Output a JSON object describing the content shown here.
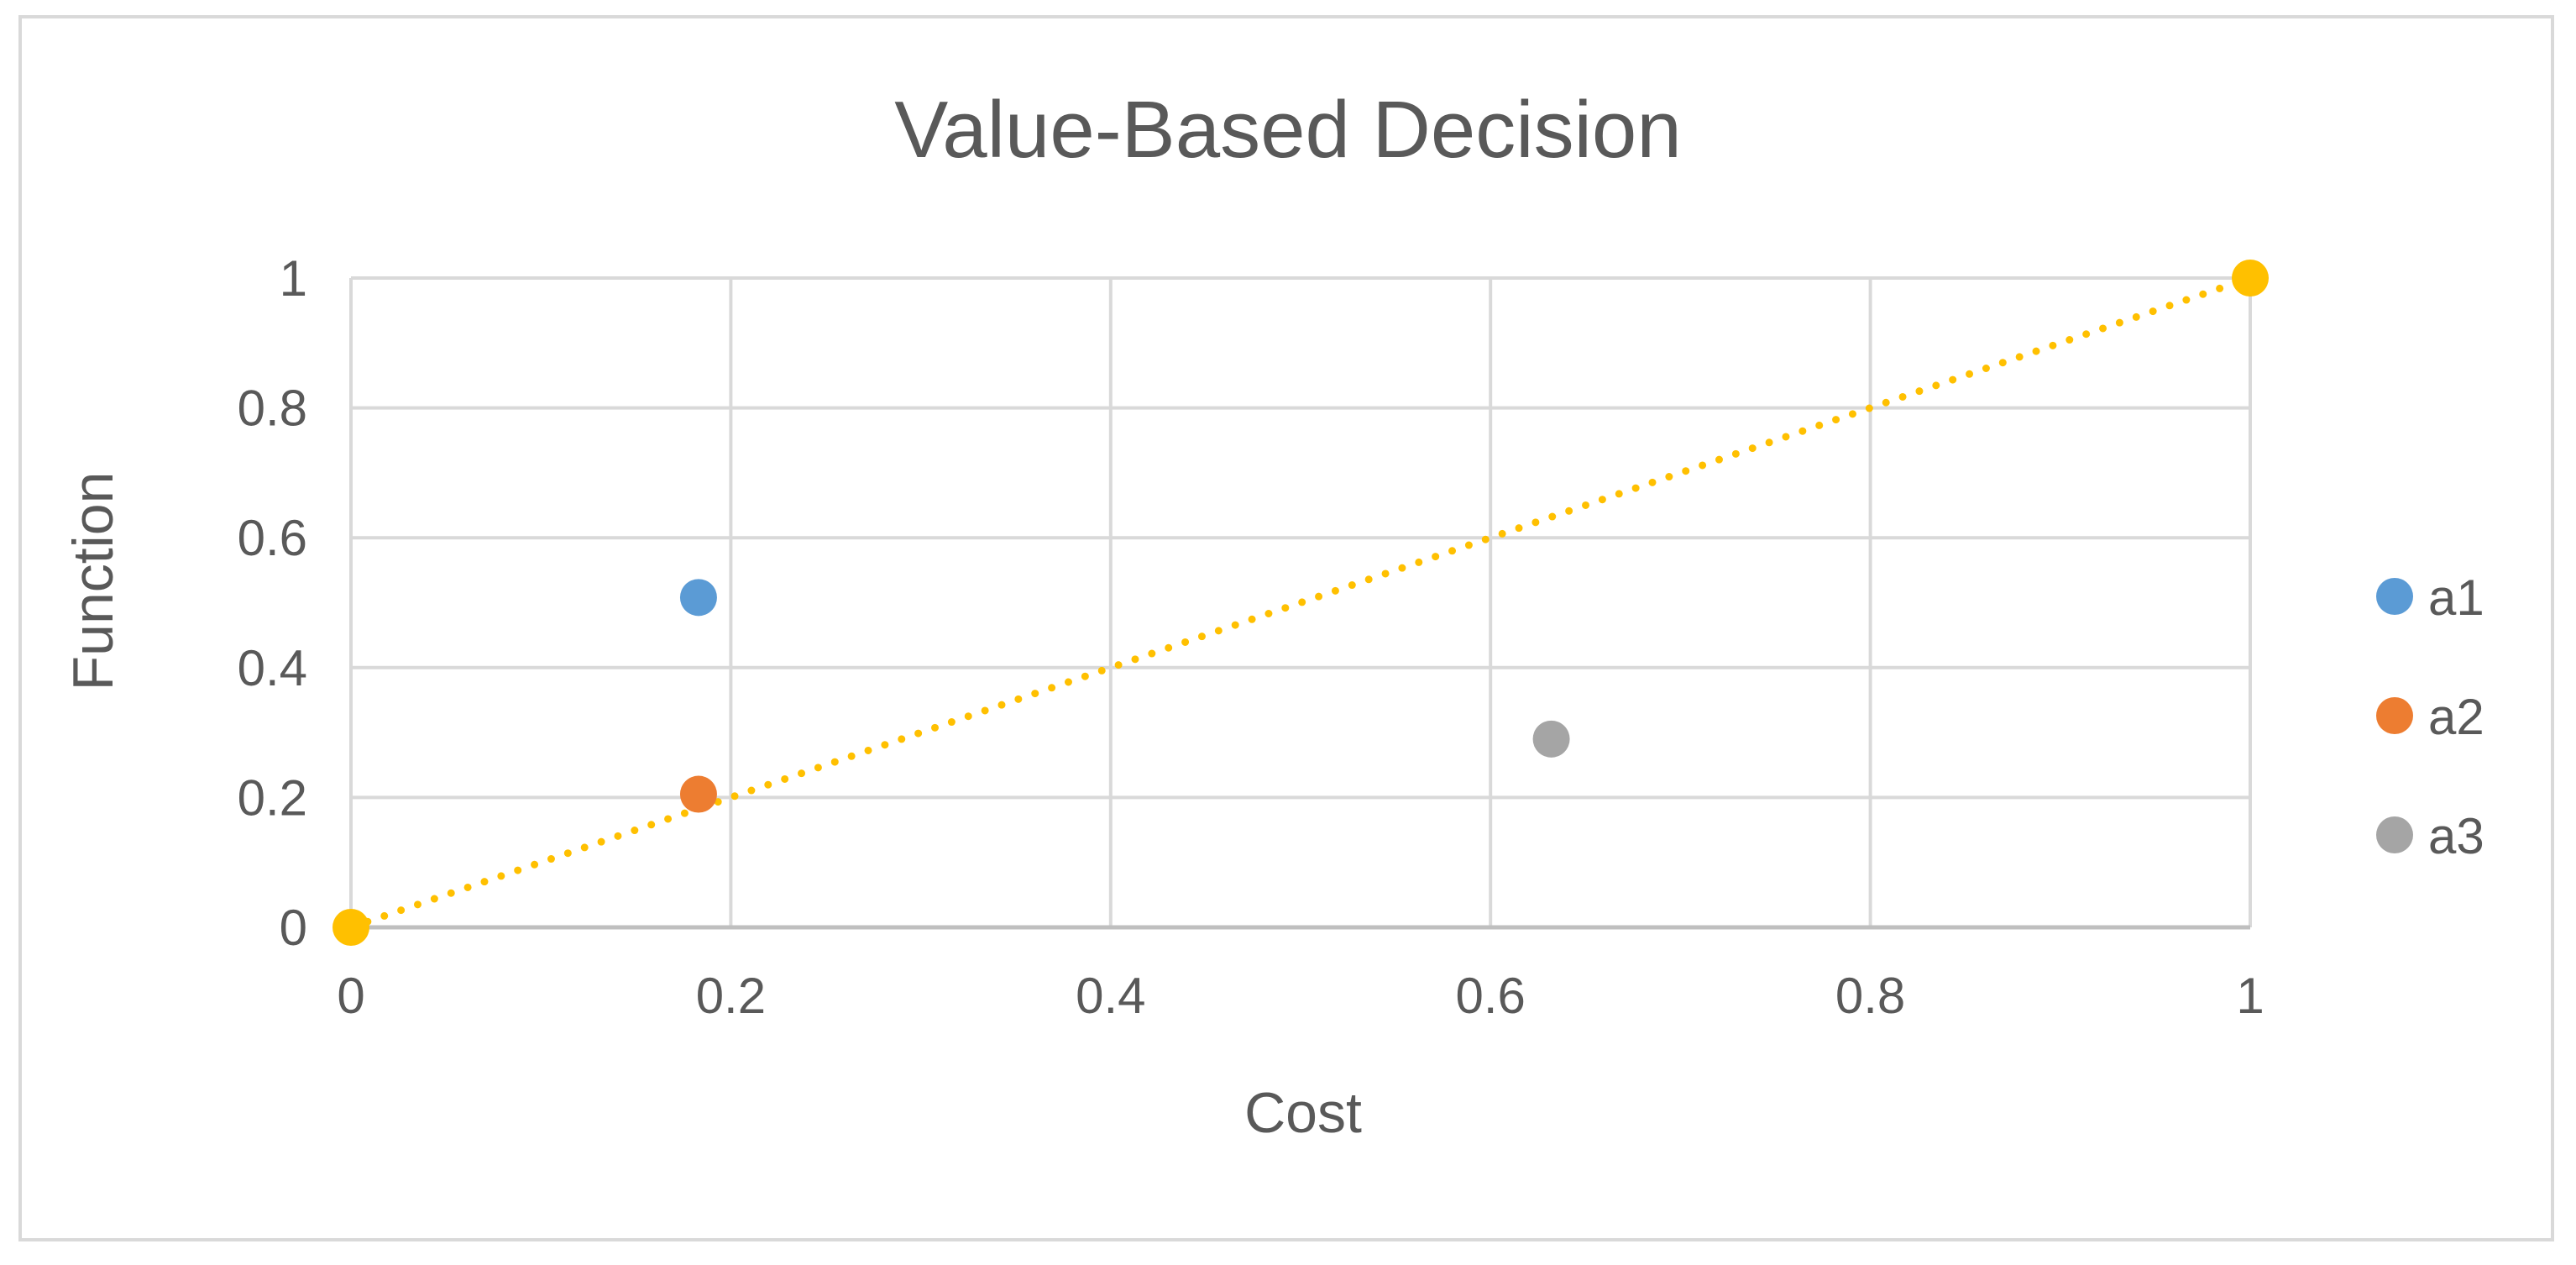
{
  "chart_data": {
    "type": "scatter",
    "title": "Value-Based Decision",
    "xlabel": "Cost",
    "ylabel": "Function",
    "xlim": [
      0,
      1
    ],
    "ylim": [
      0,
      1
    ],
    "x_ticks": [
      0,
      0.2,
      0.4,
      0.6,
      0.8,
      1
    ],
    "y_ticks": [
      0,
      0.2,
      0.4,
      0.6,
      0.8,
      1
    ],
    "x_tick_labels": [
      "0",
      "0.2",
      "0.4",
      "0.6",
      "0.8",
      "1"
    ],
    "y_tick_labels": [
      "0",
      "0.2",
      "0.4",
      "0.6",
      "0.8",
      "1"
    ],
    "grid": true,
    "legend_position": "right",
    "series": [
      {
        "name": "a1",
        "color": "#5b9bd5",
        "points": [
          [
            0.183,
            0.508
          ]
        ]
      },
      {
        "name": "a2",
        "color": "#ed7d31",
        "points": [
          [
            0.183,
            0.205
          ]
        ]
      },
      {
        "name": "a3",
        "color": "#a5a5a5",
        "points": [
          [
            0.632,
            0.29
          ]
        ]
      }
    ],
    "reference_line": {
      "color": "#ffc000",
      "style": "dotted",
      "points": [
        [
          0,
          0
        ],
        [
          1,
          1
        ]
      ]
    }
  }
}
